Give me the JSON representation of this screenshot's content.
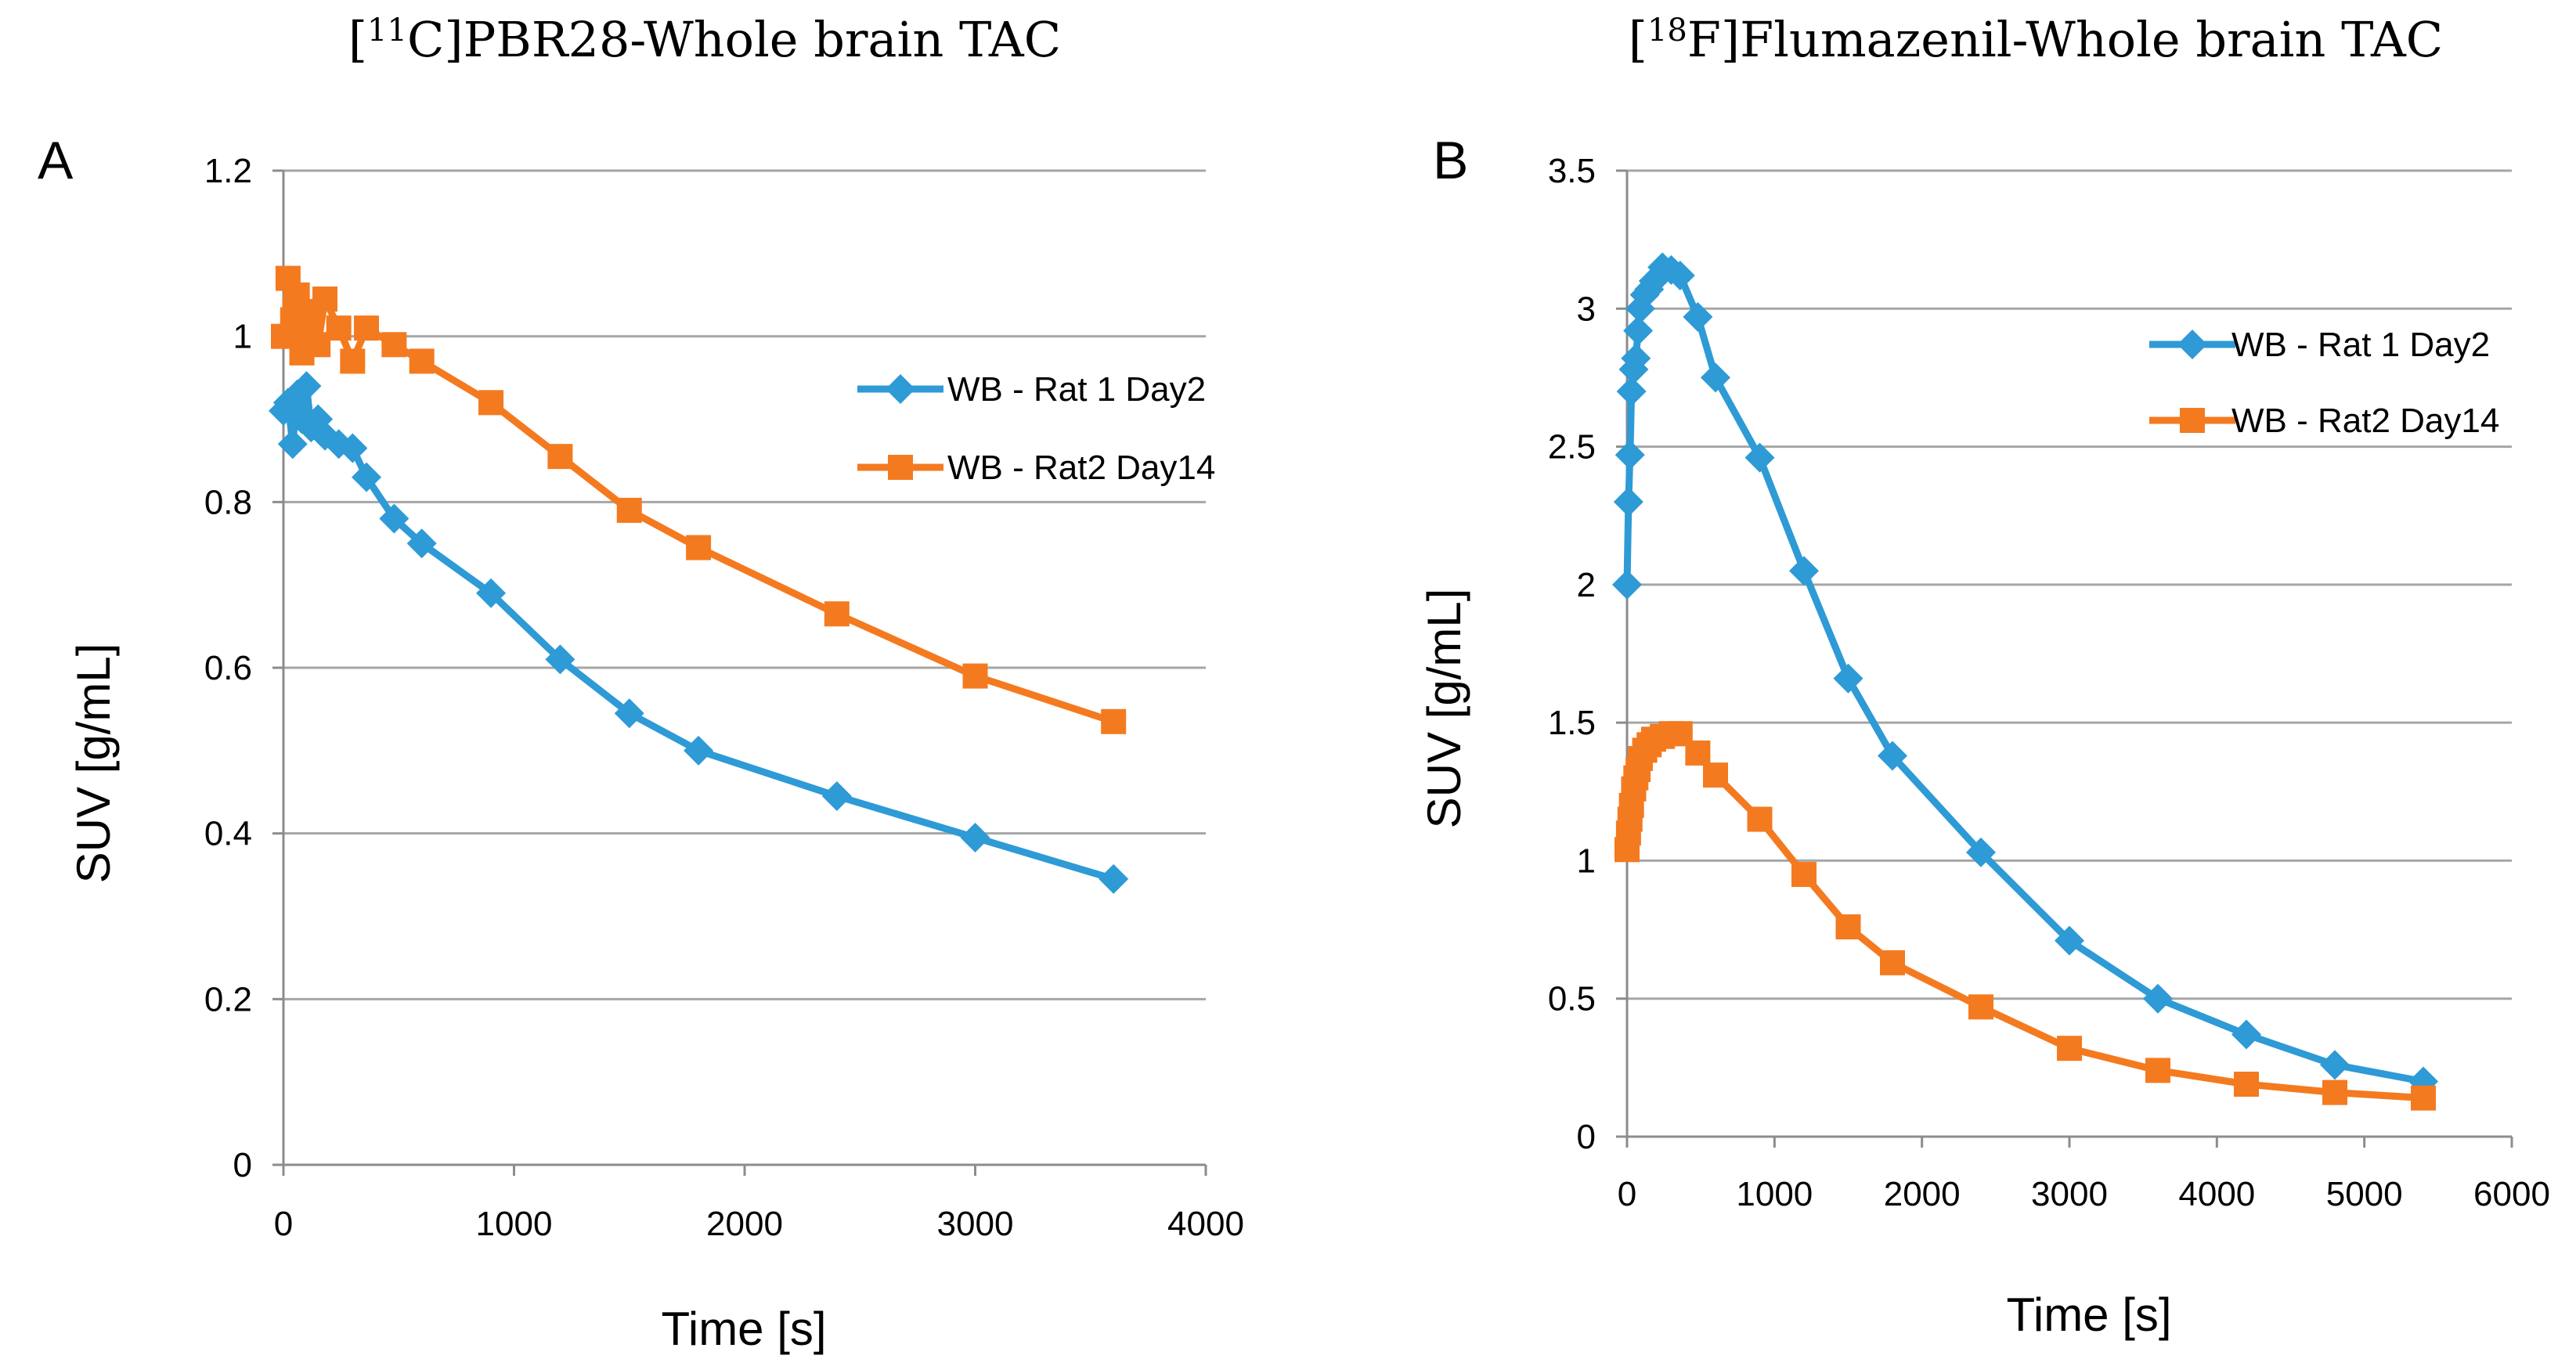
{
  "colors": {
    "blue": "#2e9ad6",
    "orange": "#f47a20"
  },
  "chart_data": [
    {
      "type": "line",
      "panel": "A",
      "title": "[11C]PBR28-Whole brain TAC",
      "title_parts": {
        "pre": "[",
        "sup": "11",
        "post": "C]PBR28-Whole brain TAC"
      },
      "xlabel": "Time [s]",
      "ylabel": "SUV [g/mL]",
      "xlim": [
        0,
        4000
      ],
      "ylim": [
        0,
        1.2
      ],
      "xticks": [
        0,
        1000,
        2000,
        3000,
        4000
      ],
      "yticks": [
        0,
        0.2,
        0.4,
        0.6,
        0.8,
        1,
        1.2
      ],
      "xtick_labels": [
        "0",
        "1000",
        "2000",
        "3000",
        "4000"
      ],
      "ytick_labels": [
        "0",
        "0.2",
        "0.4",
        "0.6",
        "0.8",
        "1",
        "1.2"
      ],
      "grid": true,
      "legend_position": "right",
      "series": [
        {
          "name": "WB - Rat 1 Day2",
          "color": "#2e9ad6",
          "marker": "diamond",
          "x": [
            0,
            20,
            40,
            60,
            80,
            100,
            120,
            150,
            180,
            240,
            300,
            360,
            480,
            600,
            900,
            1200,
            1500,
            1800,
            2400,
            3000,
            3600
          ],
          "y": [
            0.91,
            0.92,
            0.87,
            0.93,
            0.9,
            0.94,
            0.89,
            0.9,
            0.88,
            0.87,
            0.865,
            0.83,
            0.78,
            0.75,
            0.69,
            0.61,
            0.545,
            0.5,
            0.445,
            0.395,
            0.345
          ]
        },
        {
          "name": "WB - Rat2 Day14",
          "color": "#f47a20",
          "marker": "square",
          "x": [
            0,
            20,
            40,
            60,
            80,
            100,
            120,
            150,
            180,
            240,
            300,
            360,
            480,
            600,
            900,
            1200,
            1500,
            1800,
            2400,
            3000,
            3600
          ],
          "y": [
            1.0,
            1.07,
            1.02,
            1.05,
            0.98,
            1.01,
            1.03,
            0.99,
            1.045,
            1.01,
            0.97,
            1.01,
            0.99,
            0.97,
            0.92,
            0.855,
            0.79,
            0.745,
            0.665,
            0.59,
            0.535
          ]
        }
      ]
    },
    {
      "type": "line",
      "panel": "B",
      "title": "[18F]Flumazenil-Whole brain TAC",
      "title_parts": {
        "pre": "[",
        "sup": "18",
        "post": "F]Flumazenil-Whole brain TAC"
      },
      "xlabel": "Time [s]",
      "ylabel": "SUV [g/mL]",
      "xlim": [
        0,
        6000
      ],
      "ylim": [
        0,
        3.5
      ],
      "xticks": [
        0,
        1000,
        2000,
        3000,
        4000,
        5000,
        6000
      ],
      "yticks": [
        0,
        0.5,
        1,
        1.5,
        2,
        2.5,
        3,
        3.5
      ],
      "xtick_labels": [
        "0",
        "1000",
        "2000",
        "3000",
        "4000",
        "5000",
        "6000"
      ],
      "ytick_labels": [
        "0",
        "0.5",
        "1",
        "1.5",
        "2",
        "2.5",
        "3",
        "3.5"
      ],
      "grid": true,
      "legend_position": "top-right",
      "series": [
        {
          "name": "WB - Rat 1 Day2",
          "color": "#2e9ad6",
          "marker": "diamond",
          "x": [
            0,
            10,
            20,
            30,
            45,
            60,
            75,
            90,
            120,
            150,
            180,
            240,
            300,
            360,
            480,
            600,
            900,
            1200,
            1500,
            1800,
            2400,
            3000,
            3600,
            4200,
            4800,
            5400
          ],
          "y": [
            2.0,
            2.3,
            2.47,
            2.7,
            2.78,
            2.82,
            2.92,
            3.0,
            3.05,
            3.07,
            3.1,
            3.15,
            3.14,
            3.12,
            2.97,
            2.75,
            2.46,
            2.05,
            1.66,
            1.38,
            1.03,
            0.71,
            0.5,
            0.37,
            0.26,
            0.2
          ]
        },
        {
          "name": "WB - Rat2 Day14",
          "color": "#f47a20",
          "marker": "square",
          "x": [
            0,
            10,
            20,
            30,
            45,
            60,
            75,
            90,
            120,
            150,
            180,
            240,
            300,
            360,
            480,
            600,
            900,
            1200,
            1500,
            1800,
            2400,
            3000,
            3600,
            4200,
            4800,
            5400
          ],
          "y": [
            1.04,
            1.1,
            1.15,
            1.2,
            1.26,
            1.3,
            1.33,
            1.37,
            1.4,
            1.42,
            1.44,
            1.45,
            1.46,
            1.46,
            1.39,
            1.31,
            1.15,
            0.95,
            0.76,
            0.63,
            0.47,
            0.32,
            0.24,
            0.19,
            0.16,
            0.14
          ]
        }
      ]
    }
  ]
}
